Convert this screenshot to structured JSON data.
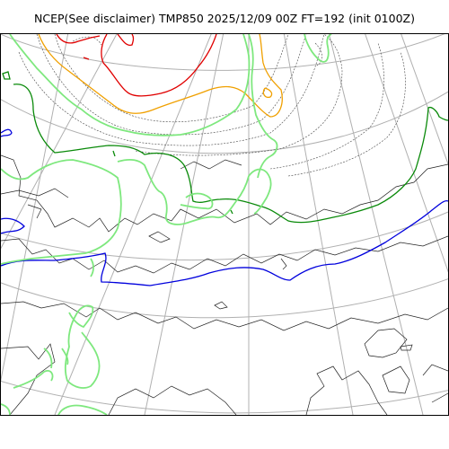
{
  "title": "NCEP(See disclaimer) TMP850 2025/12/09 00Z FT=192 (init 0100Z)",
  "colors": {
    "background": "#ffffff",
    "frame": "#000000",
    "coastline": "#000000",
    "graticule": "#b0b0b0",
    "isotherm_minor": "#444444",
    "isotherm_red": "#e00000",
    "isotherm_orange": "#f0a000",
    "isotherm_green": "#0a8a0a",
    "isotherm_blue": "#0000dd",
    "isotherm_lightgreen": "#7ee87e"
  },
  "map": {
    "variable": "TMP850",
    "projection": "polar-stereographic",
    "graticule": true,
    "legend": "none"
  }
}
